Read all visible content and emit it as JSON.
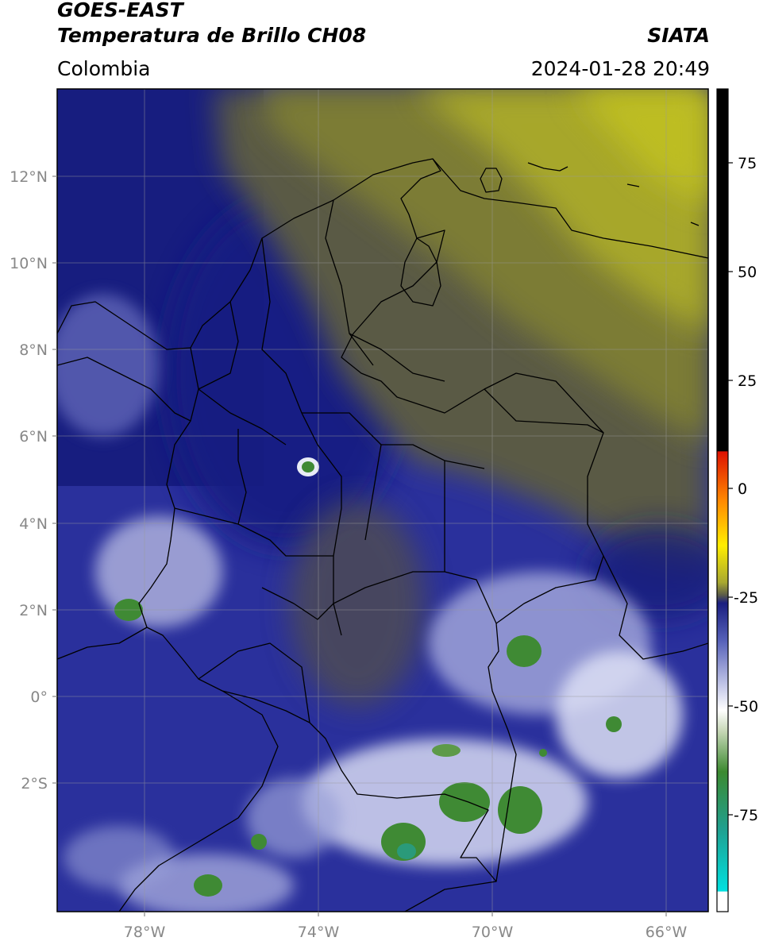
{
  "header": {
    "satellite": "GOES-EAST",
    "product": "Temperatura de Brillo CH08",
    "org": "SIATA",
    "region": "Colombia",
    "datetime": "2024-01-28 20:49"
  },
  "map": {
    "lat_labels": [
      "12°N",
      "10°N",
      "8°N",
      "6°N",
      "4°N",
      "2°N",
      "0°",
      "2°S"
    ],
    "lon_labels": [
      "78°W",
      "74°W",
      "70°W",
      "66°W"
    ],
    "colors": {
      "dry_yellow": "#b8b820",
      "mid_olive": "#5a5a44",
      "navy": "#141a7a",
      "blue": "#2c33a0",
      "cloud_white": "#e6e6f4",
      "cold_green": "#3f8a34"
    }
  },
  "colorbar": {
    "ticks": [
      "75",
      "50",
      "25",
      "0",
      "-25",
      "-50",
      "-75"
    ]
  }
}
